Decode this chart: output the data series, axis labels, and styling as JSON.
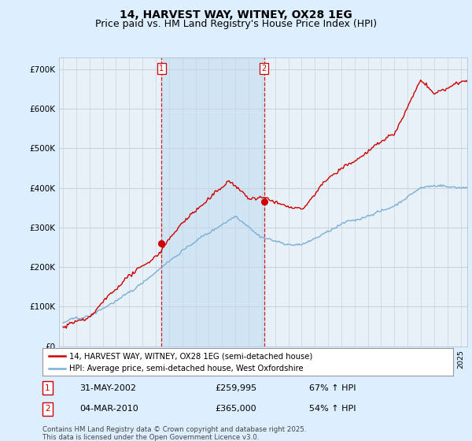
{
  "title": "14, HARVEST WAY, WITNEY, OX28 1EG",
  "subtitle": "Price paid vs. HM Land Registry's House Price Index (HPI)",
  "ylabel_ticks": [
    "£0",
    "£100K",
    "£200K",
    "£300K",
    "£400K",
    "£500K",
    "£600K",
    "£700K"
  ],
  "ytick_values": [
    0,
    100000,
    200000,
    300000,
    400000,
    500000,
    600000,
    700000
  ],
  "ylim": [
    0,
    730000
  ],
  "xlim_start": 1994.7,
  "xlim_end": 2025.5,
  "purchase1_date": 2002.42,
  "purchase1_price": 259995,
  "purchase1_label": "31-MAY-2002",
  "purchase1_amount": "£259,995",
  "purchase1_hpi": "67% ↑ HPI",
  "purchase2_date": 2010.17,
  "purchase2_price": 365000,
  "purchase2_label": "04-MAR-2010",
  "purchase2_amount": "£365,000",
  "purchase2_hpi": "54% ↑ HPI",
  "red_line_color": "#cc0000",
  "blue_line_color": "#7bafd4",
  "background_color": "#ddeeff",
  "plot_bg_color": "#e8f0f8",
  "grid_color": "#c8d4e0",
  "shade_color": "#d0e4f4",
  "vline_color": "#cc0000",
  "legend_label_red": "14, HARVEST WAY, WITNEY, OX28 1EG (semi-detached house)",
  "legend_label_blue": "HPI: Average price, semi-detached house, West Oxfordshire",
  "footnote": "Contains HM Land Registry data © Crown copyright and database right 2025.\nThis data is licensed under the Open Government Licence v3.0.",
  "title_fontsize": 10,
  "subtitle_fontsize": 9
}
